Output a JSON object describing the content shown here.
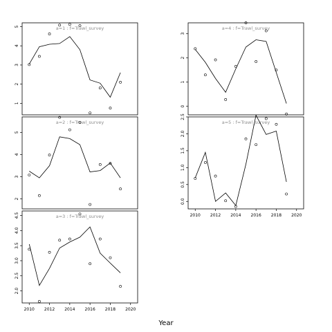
{
  "figure": {
    "xlabel": "Year"
  },
  "chart_data": [
    {
      "type": "line",
      "title": "a=1 : f=Trawl_survey",
      "x_ticks": [
        2010,
        2012,
        2014,
        2016,
        2018,
        2020
      ],
      "y_ticks": [
        1,
        2,
        3,
        4,
        5
      ],
      "xlim": [
        2009.3,
        2020.7
      ],
      "ylim": [
        0.4,
        5.2
      ],
      "series": [
        {
          "style": "line",
          "x": [
            2010,
            2011,
            2012,
            2013,
            2014,
            2015,
            2016,
            2017,
            2018,
            2019
          ],
          "y": [
            3.05,
            3.95,
            4.08,
            4.12,
            4.48,
            3.8,
            2.22,
            2.05,
            1.32,
            2.6
          ]
        },
        {
          "style": "points",
          "x": [
            2010,
            2011,
            2012,
            2013,
            2014,
            2015,
            2016,
            2017,
            2018,
            2019
          ],
          "y": [
            3.02,
            3.45,
            4.62,
            5.08,
            5.12,
            5.05,
            0.5,
            1.8,
            0.75,
            2.1
          ]
        }
      ]
    },
    {
      "type": "line",
      "title": "a=2 : f=Trawl_survey",
      "x_ticks": [
        2010,
        2012,
        2014,
        2016,
        2018,
        2020
      ],
      "y_ticks": [
        2,
        3,
        4,
        5
      ],
      "xlim": [
        2009.3,
        2020.7
      ],
      "ylim": [
        1.55,
        5.7
      ],
      "series": [
        {
          "style": "line",
          "x": [
            2010,
            2011,
            2012,
            2013,
            2014,
            2015,
            2016,
            2017,
            2018,
            2019
          ],
          "y": [
            3.25,
            2.95,
            3.5,
            4.8,
            4.72,
            4.45,
            3.22,
            3.28,
            3.62,
            2.95
          ]
        },
        {
          "style": "points",
          "x": [
            2010,
            2011,
            2012,
            2013,
            2014,
            2015,
            2016,
            2017,
            2018,
            2019
          ],
          "y": [
            3.08,
            2.15,
            3.98,
            5.68,
            5.12,
            5.45,
            1.75,
            3.55,
            3.6,
            2.45
          ]
        }
      ]
    },
    {
      "type": "line",
      "title": "a=3 : f=Trawl_survey",
      "x_ticks": [
        2010,
        2012,
        2014,
        2016,
        2018,
        2020
      ],
      "y_ticks": [
        2.0,
        2.5,
        3.0,
        3.5,
        4.0,
        4.5
      ],
      "xlim": [
        2009.3,
        2020.7
      ],
      "ylim": [
        1.6,
        4.65
      ],
      "series": [
        {
          "style": "line",
          "x": [
            2010,
            2011,
            2012,
            2013,
            2014,
            2015,
            2016,
            2017,
            2018,
            2019
          ],
          "y": [
            3.55,
            2.18,
            2.75,
            3.42,
            3.62,
            3.78,
            4.12,
            3.25,
            2.92,
            2.6
          ]
        },
        {
          "style": "points",
          "x": [
            2010,
            2011,
            2012,
            2013,
            2014,
            2015,
            2016,
            2017,
            2018,
            2019
          ],
          "y": [
            3.38,
            1.65,
            3.28,
            3.68,
            3.72,
            4.55,
            2.9,
            3.72,
            3.1,
            2.15
          ]
        }
      ]
    },
    {
      "type": "line",
      "title": "a=4 : f=Trawl_survey",
      "x_ticks": [
        2010,
        2012,
        2014,
        2016,
        2018,
        2020
      ],
      "y_ticks": [
        0,
        1,
        2,
        3
      ],
      "xlim": [
        2009.3,
        2020.7
      ],
      "ylim": [
        -0.35,
        3.45
      ],
      "series": [
        {
          "style": "line",
          "x": [
            2010,
            2011,
            2012,
            2013,
            2014,
            2015,
            2016,
            2017,
            2018,
            2019
          ],
          "y": [
            2.35,
            1.82,
            1.15,
            0.58,
            1.55,
            2.45,
            2.75,
            2.68,
            1.4,
            0.12
          ]
        },
        {
          "style": "points",
          "x": [
            2010,
            2011,
            2012,
            2013,
            2014,
            2015,
            2016,
            2017,
            2018,
            2019
          ],
          "y": [
            2.38,
            1.3,
            1.92,
            0.28,
            1.65,
            3.45,
            1.85,
            3.12,
            1.5,
            -0.32
          ]
        }
      ]
    },
    {
      "type": "line",
      "title": "a=5 : f=Trawl_survey",
      "x_ticks": [
        2010,
        2012,
        2014,
        2016,
        2018,
        2020
      ],
      "y_ticks": [
        0.0,
        0.5,
        1.0,
        1.5,
        2.0,
        2.5
      ],
      "xlim": [
        2009.3,
        2020.7
      ],
      "ylim": [
        -0.22,
        2.5
      ],
      "series": [
        {
          "style": "line",
          "x": [
            2010,
            2011,
            2012,
            2013,
            2014,
            2015,
            2016,
            2017,
            2018,
            2019
          ],
          "y": [
            0.7,
            1.45,
            0.0,
            0.25,
            -0.12,
            1.1,
            2.55,
            1.98,
            2.08,
            0.58
          ]
        },
        {
          "style": "points",
          "x": [
            2010,
            2011,
            2012,
            2013,
            2014,
            2015,
            2016,
            2017,
            2018,
            2019
          ],
          "y": [
            0.68,
            1.15,
            0.75,
            0.02,
            -0.15,
            1.85,
            1.68,
            2.45,
            2.28,
            0.22
          ]
        }
      ]
    }
  ]
}
